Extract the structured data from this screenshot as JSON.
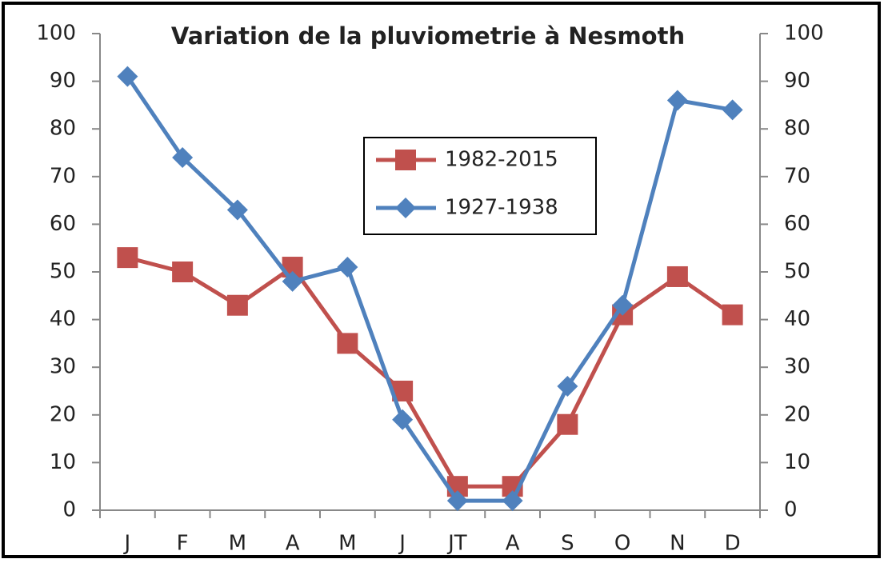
{
  "chart_data": {
    "type": "line",
    "title": "Variation de la pluviometrie à Nesmoth",
    "categories": [
      "J",
      "F",
      "M",
      "A",
      "M",
      "J",
      "JT",
      "A",
      "S",
      "O",
      "N",
      "D"
    ],
    "series": [
      {
        "name": "1982-2015",
        "color": "#c0504d",
        "marker": "square",
        "values": [
          53,
          50,
          43,
          51,
          35,
          25,
          5,
          5,
          18,
          41,
          49,
          41
        ]
      },
      {
        "name": "1927-1938",
        "color": "#4f81bd",
        "marker": "diamond",
        "values": [
          91,
          74,
          63,
          48,
          51,
          19,
          2,
          2,
          26,
          43,
          86,
          84
        ]
      }
    ],
    "ylim": [
      0,
      100
    ],
    "yticks": [
      0,
      10,
      20,
      30,
      40,
      50,
      60,
      70,
      80,
      90,
      100
    ],
    "y2lim": [
      0,
      100
    ],
    "y2ticks": [
      0,
      10,
      20,
      30,
      40,
      50,
      60,
      70,
      80,
      90,
      100
    ],
    "grid": false,
    "legend": "center"
  }
}
